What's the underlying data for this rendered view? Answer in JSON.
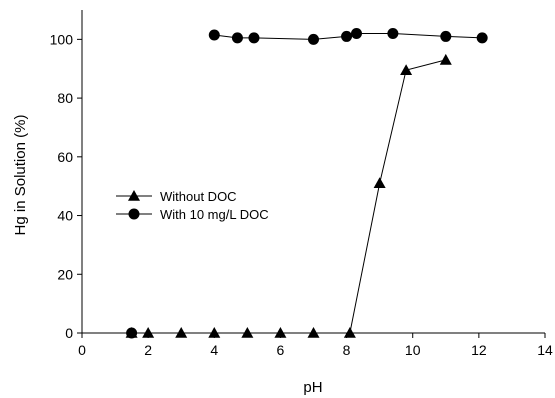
{
  "chart_data": {
    "type": "line",
    "xlabel": "pH",
    "ylabel": "Hg in Solution (%)",
    "xlim": [
      0,
      14
    ],
    "ylim": [
      0,
      110
    ],
    "xticks": [
      0,
      2,
      4,
      6,
      8,
      10,
      12,
      14
    ],
    "yticks": [
      0,
      20,
      40,
      60,
      80,
      100
    ],
    "grid": false,
    "legend_position": "middle-left",
    "series": [
      {
        "name": "Without DOC",
        "marker": "triangle",
        "color": "#000000",
        "points": [
          {
            "x": 1.5,
            "y": 0
          },
          {
            "x": 2.0,
            "y": 0
          },
          {
            "x": 3.0,
            "y": 0
          },
          {
            "x": 4.0,
            "y": 0
          },
          {
            "x": 5.0,
            "y": 0
          },
          {
            "x": 6.0,
            "y": 0
          },
          {
            "x": 7.0,
            "y": 0
          },
          {
            "x": 8.1,
            "y": 0
          },
          {
            "x": 9.0,
            "y": 51
          },
          {
            "x": 9.8,
            "y": 89.5
          },
          {
            "x": 11.0,
            "y": 93
          }
        ]
      },
      {
        "name": "With 10 mg/L DOC",
        "marker": "circle",
        "color": "#000000",
        "points": [
          {
            "x": 1.5,
            "y": 0
          },
          {
            "x": 4.0,
            "y": 101.5
          },
          {
            "x": 4.7,
            "y": 100.5
          },
          {
            "x": 5.2,
            "y": 100.5
          },
          {
            "x": 7.0,
            "y": 100
          },
          {
            "x": 8.0,
            "y": 101
          },
          {
            "x": 8.3,
            "y": 102
          },
          {
            "x": 9.4,
            "y": 102
          },
          {
            "x": 11.0,
            "y": 101
          },
          {
            "x": 12.1,
            "y": 100.5
          }
        ],
        "line_from_index": 1
      }
    ]
  }
}
